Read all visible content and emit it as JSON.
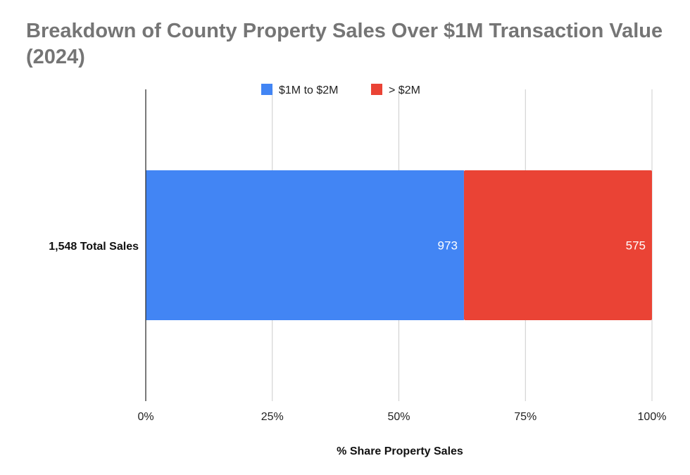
{
  "chart_data": {
    "type": "bar",
    "orientation": "horizontal",
    "stacked": "percent",
    "title": "Breakdown of County Property Sales Over $1M Transaction Value (2024)",
    "xlabel": "% Share Property Sales",
    "ylabel": "",
    "categories": [
      "1,548 Total Sales"
    ],
    "series": [
      {
        "name": "$1M to $2M",
        "values": [
          973
        ],
        "color": "#4285F4"
      },
      {
        "name": "> $2M",
        "values": [
          575
        ],
        "color": "#EA4335"
      }
    ],
    "xlim": [
      0,
      100
    ],
    "xticks": [
      "0%",
      "25%",
      "50%",
      "75%",
      "100%"
    ],
    "grid": true,
    "legend": "top-center"
  }
}
